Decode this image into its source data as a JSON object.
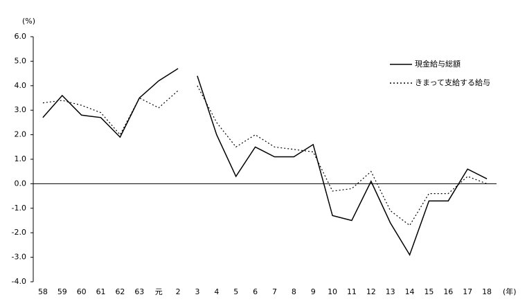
{
  "chart_data": {
    "type": "line",
    "y_label": "(%)",
    "x_label": "(年)",
    "categories": [
      "58",
      "59",
      "60",
      "61",
      "62",
      "63",
      "元",
      "2",
      "3",
      "4",
      "5",
      "6",
      "7",
      "8",
      "9",
      "10",
      "11",
      "12",
      "13",
      "14",
      "15",
      "16",
      "17",
      "18"
    ],
    "break_after_index": 7,
    "series": [
      {
        "name": "現金給与総額",
        "color": "#000000",
        "dash": "solid",
        "values": [
          2.7,
          3.6,
          2.8,
          2.7,
          1.9,
          3.5,
          4.2,
          4.7,
          4.4,
          2.0,
          0.3,
          1.5,
          1.1,
          1.1,
          1.6,
          -1.3,
          -1.5,
          0.1,
          -1.6,
          -2.9,
          -0.7,
          -0.7,
          0.6,
          0.2
        ]
      },
      {
        "name": "きまって支給する給与",
        "color": "#000000",
        "dash": "dotted",
        "values": [
          3.3,
          3.4,
          3.2,
          2.9,
          2.0,
          3.5,
          3.1,
          3.8,
          4.0,
          2.5,
          1.5,
          2.0,
          1.5,
          1.4,
          1.3,
          -0.3,
          -0.2,
          0.5,
          -1.1,
          -1.7,
          -0.4,
          -0.4,
          0.3,
          0.0
        ]
      }
    ],
    "ylim": [
      -4,
      6
    ],
    "yticks": [
      {
        "value": -4,
        "label": "-4.0"
      },
      {
        "value": -3,
        "label": "-3.0"
      },
      {
        "value": -2,
        "label": "-2.0"
      },
      {
        "value": -1,
        "label": "-1.0"
      },
      {
        "value": 0,
        "label": "0.0"
      },
      {
        "value": 1,
        "label": "1.0"
      },
      {
        "value": 2,
        "label": "2.0"
      },
      {
        "value": 3,
        "label": "3.0"
      },
      {
        "value": 4,
        "label": "4.0"
      },
      {
        "value": 5,
        "label": "5.0"
      },
      {
        "value": 6,
        "label": "6.0"
      }
    ],
    "legend": "top-right"
  }
}
